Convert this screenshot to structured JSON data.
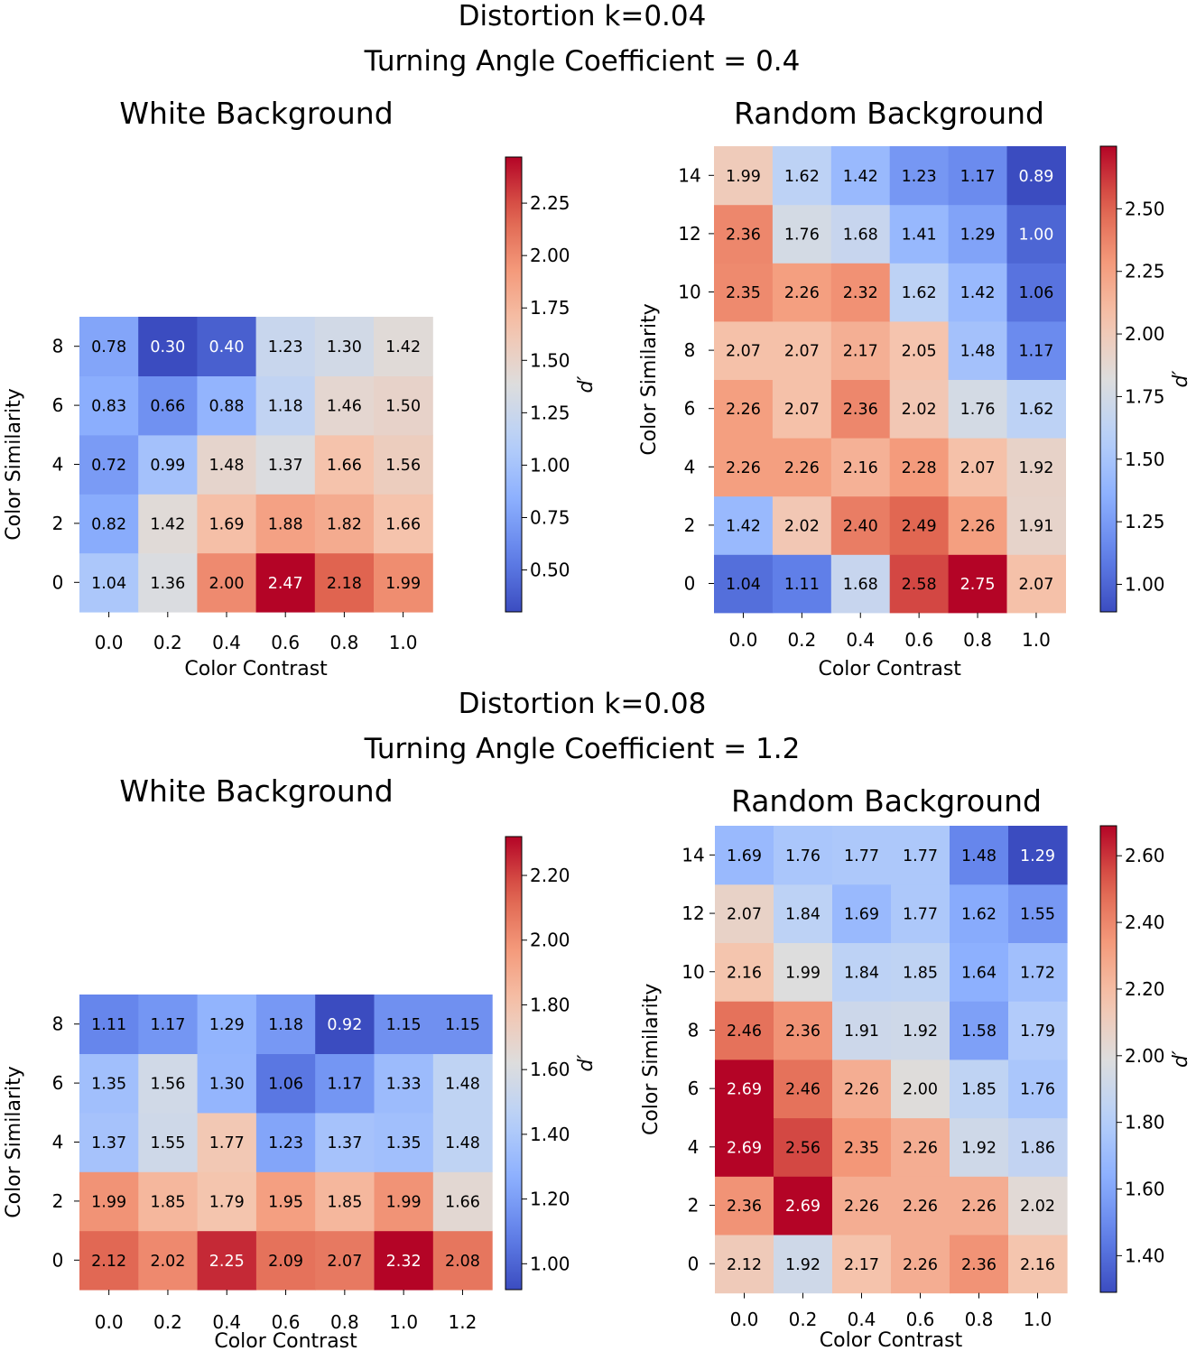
{
  "figure": {
    "sections": [
      {
        "title_line1": "Distortion k=0.04",
        "title_line2": "Turning Angle Coefficient = 0.4"
      },
      {
        "title_line1": "Distortion k=0.08",
        "title_line2": "Turning Angle Coefficient = 1.2"
      }
    ]
  },
  "chart_data": [
    {
      "type": "heatmap",
      "title": "White Background",
      "xlabel": "Color Contrast",
      "ylabel": "Color Similarity",
      "colorbar_label": "d′",
      "x": [
        "0.0",
        "0.2",
        "0.4",
        "0.6",
        "0.8",
        "1.0"
      ],
      "y": [
        "0",
        "2",
        "4",
        "6",
        "8"
      ],
      "values": [
        [
          1.04,
          1.36,
          2.0,
          2.47,
          2.18,
          1.99
        ],
        [
          0.82,
          1.42,
          1.69,
          1.88,
          1.82,
          1.66
        ],
        [
          0.72,
          0.99,
          1.48,
          1.37,
          1.66,
          1.56
        ],
        [
          0.83,
          0.66,
          0.88,
          1.18,
          1.46,
          1.5
        ],
        [
          0.78,
          0.3,
          0.4,
          1.23,
          1.3,
          1.42
        ]
      ],
      "vmin": 0.3,
      "vmax": 2.47,
      "colorbar_ticks": [
        "0.50",
        "0.75",
        "1.00",
        "1.25",
        "1.50",
        "1.75",
        "2.00",
        "2.25"
      ]
    },
    {
      "type": "heatmap",
      "title": "Random Background",
      "xlabel": "Color Contrast",
      "ylabel": "Color Similarity",
      "colorbar_label": "d′",
      "x": [
        "0.0",
        "0.2",
        "0.4",
        "0.6",
        "0.8",
        "1.0"
      ],
      "y": [
        "0",
        "2",
        "4",
        "6",
        "8",
        "10",
        "12",
        "14"
      ],
      "values": [
        [
          1.04,
          1.11,
          1.68,
          2.58,
          2.75,
          2.07
        ],
        [
          1.42,
          2.02,
          2.4,
          2.49,
          2.26,
          1.91
        ],
        [
          2.26,
          2.26,
          2.16,
          2.28,
          2.07,
          1.92
        ],
        [
          2.26,
          2.07,
          2.36,
          2.02,
          1.76,
          1.62
        ],
        [
          2.07,
          2.07,
          2.17,
          2.05,
          1.48,
          1.17
        ],
        [
          2.35,
          2.26,
          2.32,
          1.62,
          1.42,
          1.06
        ],
        [
          2.36,
          1.76,
          1.68,
          1.41,
          1.29,
          1.0
        ],
        [
          1.99,
          1.62,
          1.42,
          1.23,
          1.17,
          0.89
        ]
      ],
      "vmin": 0.89,
      "vmax": 2.75,
      "colorbar_ticks": [
        "1.00",
        "1.25",
        "1.50",
        "1.75",
        "2.00",
        "2.25",
        "2.50"
      ]
    },
    {
      "type": "heatmap",
      "title": "White Background",
      "xlabel": "Color Contrast",
      "ylabel": "Color Similarity",
      "colorbar_label": "d′",
      "x": [
        "0.0",
        "0.2",
        "0.4",
        "0.6",
        "0.8",
        "1.0",
        "1.2"
      ],
      "y": [
        "0",
        "2",
        "4",
        "6",
        "8"
      ],
      "values": [
        [
          2.12,
          2.02,
          2.25,
          2.09,
          2.07,
          2.32,
          2.08
        ],
        [
          1.99,
          1.85,
          1.79,
          1.95,
          1.85,
          1.99,
          1.66
        ],
        [
          1.37,
          1.55,
          1.77,
          1.23,
          1.37,
          1.35,
          1.48
        ],
        [
          1.35,
          1.56,
          1.3,
          1.06,
          1.17,
          1.33,
          1.48
        ],
        [
          1.11,
          1.17,
          1.29,
          1.18,
          0.92,
          1.15,
          1.15
        ]
      ],
      "vmin": 0.92,
      "vmax": 2.32,
      "colorbar_ticks": [
        "1.00",
        "1.20",
        "1.40",
        "1.60",
        "1.80",
        "2.00",
        "2.20"
      ]
    },
    {
      "type": "heatmap",
      "title": "Random Background",
      "xlabel": "Color Contrast",
      "ylabel": "Color Similarity",
      "colorbar_label": "d′",
      "x": [
        "0.0",
        "0.2",
        "0.4",
        "0.6",
        "0.8",
        "1.0"
      ],
      "y": [
        "0",
        "2",
        "4",
        "6",
        "8",
        "10",
        "12",
        "14"
      ],
      "values": [
        [
          2.12,
          1.92,
          2.17,
          2.26,
          2.36,
          2.16
        ],
        [
          2.36,
          2.69,
          2.26,
          2.26,
          2.26,
          2.02
        ],
        [
          2.69,
          2.56,
          2.35,
          2.26,
          1.92,
          1.86
        ],
        [
          2.69,
          2.46,
          2.26,
          2.0,
          1.85,
          1.76
        ],
        [
          2.46,
          2.36,
          1.91,
          1.92,
          1.58,
          1.79
        ],
        [
          2.16,
          1.99,
          1.84,
          1.85,
          1.64,
          1.72
        ],
        [
          2.07,
          1.84,
          1.69,
          1.77,
          1.62,
          1.55
        ],
        [
          1.69,
          1.76,
          1.77,
          1.77,
          1.48,
          1.29
        ]
      ],
      "vmin": 1.29,
      "vmax": 2.69,
      "colorbar_ticks": [
        "1.40",
        "1.60",
        "1.80",
        "2.00",
        "2.20",
        "2.40",
        "2.60"
      ]
    }
  ]
}
